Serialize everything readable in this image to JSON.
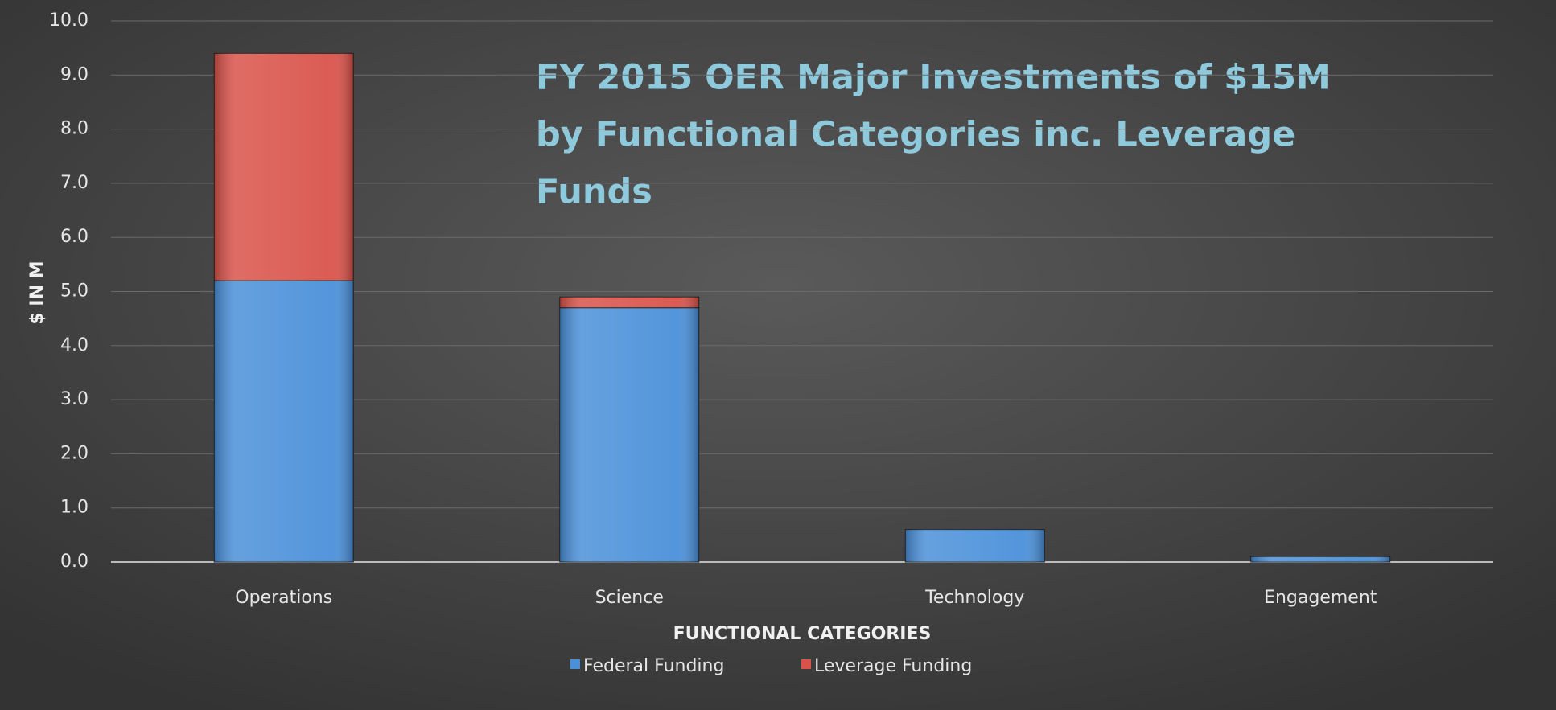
{
  "chart_data": {
    "type": "stacked_bar",
    "title": "FY 2015 OER Major Investments of $15M by Functional Categories inc. Leverage Funds",
    "title_lines": [
      "FY 2015 OER Major Investments of $15M",
      "by Functional Categories inc. Leverage",
      "Funds"
    ],
    "x_label": "FUNCTIONAL CATEGORIES",
    "y_label": "$ IN M",
    "categories": [
      "Operations",
      "Science",
      "Technology",
      "Engagement"
    ],
    "series": [
      {
        "name": "Federal Funding",
        "color": "#4a90d9",
        "values": [
          5.2,
          4.7,
          0.6,
          0.1
        ]
      },
      {
        "name": "Leverage Funding",
        "color": "#d9534a",
        "values": [
          4.2,
          0.2,
          0,
          0
        ]
      }
    ],
    "ylim": [
      0,
      10
    ],
    "yticks": [
      {
        "value": 0,
        "label": "0.0"
      },
      {
        "value": 1,
        "label": "1.0"
      },
      {
        "value": 2,
        "label": "2.0"
      },
      {
        "value": 3,
        "label": "3.0"
      },
      {
        "value": 4,
        "label": "4.0"
      },
      {
        "value": 5,
        "label": "5.0"
      },
      {
        "value": 6,
        "label": "6.0"
      },
      {
        "value": 7,
        "label": "7.0"
      },
      {
        "value": 8,
        "label": "8.0"
      },
      {
        "value": 9,
        "label": "9.0"
      },
      {
        "value": 10,
        "label": "10.0"
      }
    ],
    "grid": true,
    "legend": "bottom"
  }
}
